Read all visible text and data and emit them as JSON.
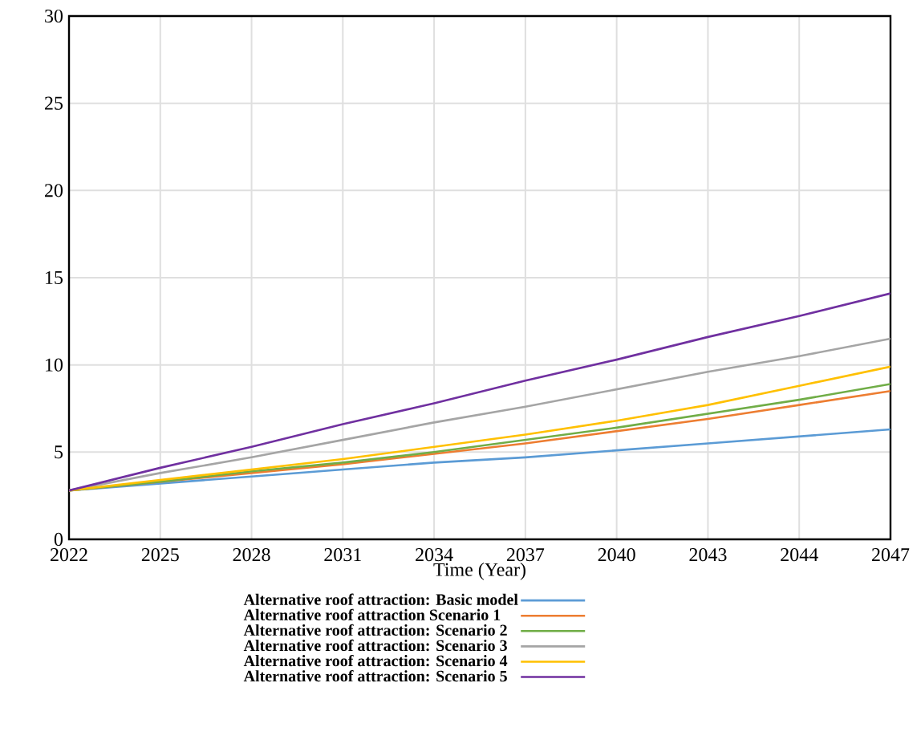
{
  "chart_data": {
    "type": "line",
    "xlabel": "Time (Year)",
    "categories": [
      "2022",
      "2025",
      "2028",
      "2031",
      "2034",
      "2037",
      "2040",
      "2043",
      "2044",
      "2047"
    ],
    "ylim": [
      0,
      30
    ],
    "yticks": [
      0,
      5,
      10,
      15,
      20,
      25,
      30
    ],
    "grid": true,
    "legend": "bottom",
    "marker": "none",
    "line_style": "solid",
    "series": [
      {
        "name": "Alternative roof attraction: Basic model",
        "color": "#5b9bd5",
        "values": [
          2.8,
          3.2,
          3.6,
          4.0,
          4.4,
          4.7,
          5.1,
          5.5,
          5.9,
          6.3
        ]
      },
      {
        "name": "Alternative roof attraction Scenario 1",
        "color": "#ed7d31",
        "values": [
          2.8,
          3.3,
          3.8,
          4.3,
          4.9,
          5.5,
          6.2,
          6.9,
          7.7,
          8.5
        ]
      },
      {
        "name": "Alternative roof attraction: Scenario 2",
        "color": "#70ad47",
        "values": [
          2.8,
          3.3,
          3.9,
          4.4,
          5.0,
          5.7,
          6.4,
          7.2,
          8.0,
          8.9
        ]
      },
      {
        "name": "Alternative roof attraction: Scenario 3",
        "color": "#a5a5a5",
        "values": [
          2.8,
          3.8,
          4.7,
          5.7,
          6.7,
          7.6,
          8.6,
          9.6,
          10.5,
          11.5
        ]
      },
      {
        "name": "Alternative roof attraction: Scenario 4",
        "color": "#ffc000",
        "values": [
          2.8,
          3.4,
          4.0,
          4.6,
          5.3,
          6.0,
          6.8,
          7.7,
          8.8,
          9.9
        ]
      },
      {
        "name": "Alternative roof attraction: Scenario 5",
        "color": "#7030a0",
        "values": [
          2.8,
          4.1,
          5.3,
          6.6,
          7.8,
          9.1,
          10.3,
          11.6,
          12.8,
          14.1
        ]
      }
    ]
  }
}
